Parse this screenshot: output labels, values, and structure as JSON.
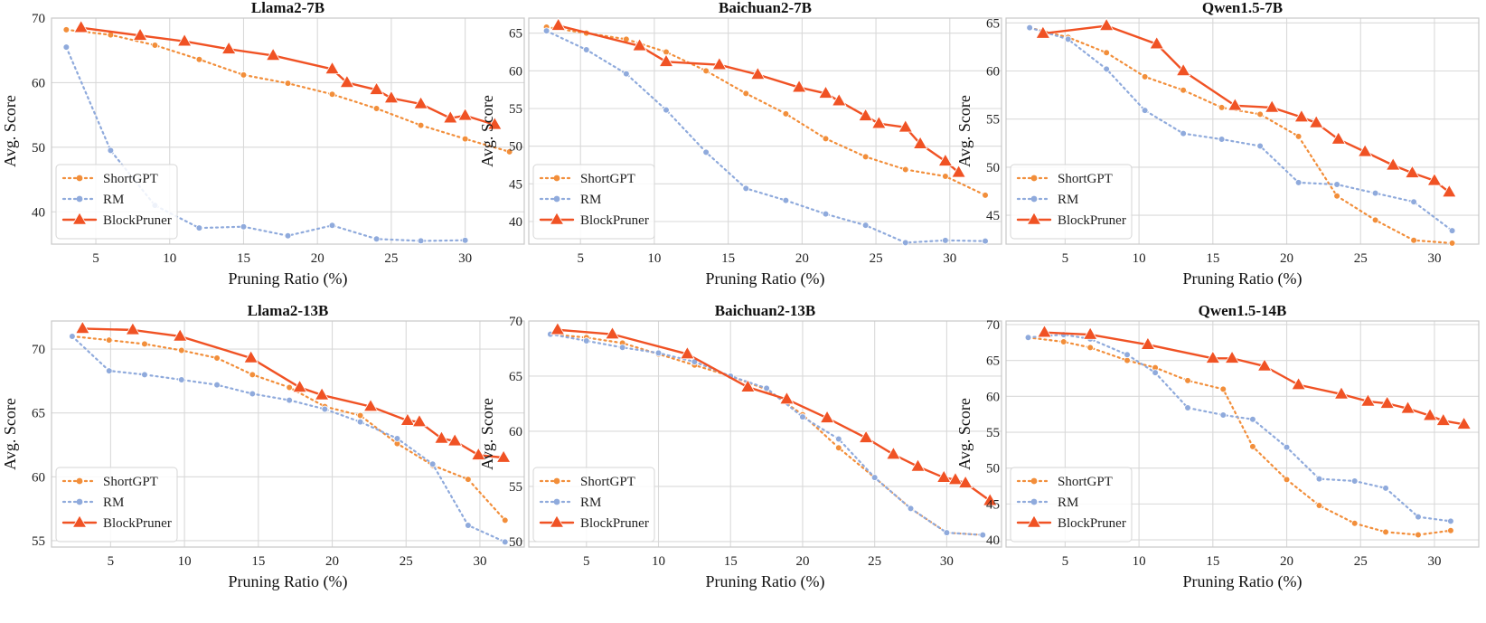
{
  "chart_data": [
    {
      "type": "line",
      "title": "Llama2-7B",
      "xlabel": "Pruning Ratio (%)",
      "ylabel": "Avg. Score",
      "xlim": [
        2,
        34
      ],
      "ylim": [
        35,
        70
      ],
      "xticks": [
        5,
        10,
        15,
        20,
        25,
        30
      ],
      "yticks": [
        40,
        50,
        60,
        70
      ],
      "legend": "lower-left",
      "series": [
        {
          "name": "ShortGPT",
          "x": [
            3,
            6,
            9,
            12,
            15,
            18,
            21,
            24,
            27,
            30,
            33
          ],
          "y": [
            68.2,
            67.4,
            65.8,
            63.6,
            61.2,
            59.9,
            58.2,
            56.0,
            53.4,
            51.3,
            49.3
          ]
        },
        {
          "name": "RM",
          "x": [
            3,
            6,
            9,
            12,
            15,
            18,
            21,
            24,
            27,
            30
          ],
          "y": [
            65.5,
            49.5,
            41.0,
            37.5,
            37.7,
            36.3,
            37.9,
            35.8,
            35.5,
            35.6
          ]
        },
        {
          "name": "BlockPruner",
          "x": [
            4,
            8,
            11,
            14,
            17,
            21,
            22,
            24,
            25,
            27,
            29,
            30,
            32
          ],
          "y": [
            68.5,
            67.3,
            66.4,
            65.2,
            64.2,
            62.1,
            60.0,
            58.9,
            57.6,
            56.7,
            54.5,
            54.9,
            53.5
          ]
        }
      ]
    },
    {
      "type": "line",
      "title": "Baichuan2-7B",
      "xlabel": "Pruning Ratio (%)",
      "ylabel": "Avg. Score",
      "xlim": [
        1.5,
        33.5
      ],
      "ylim": [
        37,
        67
      ],
      "xticks": [
        5,
        10,
        15,
        20,
        25,
        30
      ],
      "yticks": [
        40,
        45,
        50,
        55,
        60,
        65
      ],
      "legend": "lower-left",
      "series": [
        {
          "name": "ShortGPT",
          "x": [
            2.7,
            5.4,
            8.1,
            10.8,
            13.5,
            16.2,
            18.9,
            21.6,
            24.3,
            27,
            29.7,
            32.4
          ],
          "y": [
            65.8,
            65.0,
            64.2,
            62.5,
            60.0,
            57.0,
            54.3,
            51.0,
            48.6,
            46.9,
            46.0,
            43.5
          ]
        },
        {
          "name": "RM",
          "x": [
            2.7,
            5.4,
            8.1,
            10.8,
            13.5,
            16.2,
            18.9,
            21.6,
            24.3,
            27,
            29.7,
            32.4
          ],
          "y": [
            65.3,
            62.8,
            59.6,
            54.8,
            49.2,
            44.4,
            42.8,
            41.0,
            39.5,
            37.2,
            37.5,
            37.4
          ]
        },
        {
          "name": "BlockPruner",
          "x": [
            3.5,
            9,
            10.8,
            14.4,
            17,
            19.8,
            21.6,
            22.5,
            24.3,
            25.2,
            27,
            28,
            29.7,
            30.6
          ],
          "y": [
            66.0,
            63.3,
            61.2,
            60.8,
            59.5,
            57.8,
            57.0,
            56.0,
            54.0,
            53.0,
            52.5,
            50.3,
            48.0,
            46.5
          ]
        }
      ]
    },
    {
      "type": "line",
      "title": "Qwen1.5-7B",
      "xlabel": "Pruning Ratio (%)",
      "ylabel": "Avg. Score",
      "xlim": [
        1,
        33
      ],
      "ylim": [
        42,
        65.5
      ],
      "xticks": [
        5,
        10,
        15,
        20,
        25,
        30
      ],
      "yticks": [
        45,
        50,
        55,
        60,
        65
      ],
      "legend": "lower-left",
      "series": [
        {
          "name": "ShortGPT",
          "x": [
            2.6,
            5.2,
            7.8,
            10.4,
            13,
            15.6,
            18.2,
            20.8,
            23.4,
            26,
            28.6,
            31.2
          ],
          "y": [
            64.5,
            63.5,
            61.9,
            59.4,
            58.0,
            56.2,
            55.5,
            53.2,
            47.0,
            44.5,
            42.4,
            42.1
          ]
        },
        {
          "name": "RM",
          "x": [
            2.6,
            5.2,
            7.8,
            10.4,
            13,
            15.6,
            18.2,
            20.8,
            23.4,
            26,
            28.6,
            31.2
          ],
          "y": [
            64.5,
            63.3,
            60.2,
            55.9,
            53.5,
            52.9,
            52.2,
            48.4,
            48.2,
            47.3,
            46.4,
            43.4
          ]
        },
        {
          "name": "BlockPruner",
          "x": [
            3.5,
            7.8,
            11.2,
            13,
            16.5,
            19,
            21,
            22,
            23.5,
            25.3,
            27.2,
            28.5,
            30,
            31
          ],
          "y": [
            63.9,
            64.7,
            62.8,
            60.0,
            56.4,
            56.2,
            55.2,
            54.6,
            52.9,
            51.6,
            50.2,
            49.4,
            48.6,
            47.4
          ]
        }
      ]
    },
    {
      "type": "line",
      "title": "Llama2-13B",
      "xlabel": "Pruning Ratio (%)",
      "ylabel": "Avg. Score",
      "xlim": [
        1,
        33
      ],
      "ylim": [
        54.5,
        72.2
      ],
      "xticks": [
        5,
        10,
        15,
        20,
        25,
        30
      ],
      "yticks": [
        55,
        60,
        65,
        70
      ],
      "legend": "lower-left",
      "series": [
        {
          "name": "ShortGPT",
          "x": [
            2.4,
            4.9,
            7.3,
            9.8,
            12.2,
            14.6,
            17.1,
            19.5,
            21.9,
            24.4,
            26.8,
            29.2,
            31.7
          ],
          "y": [
            71.0,
            70.7,
            70.4,
            69.9,
            69.3,
            68.0,
            67.0,
            65.5,
            64.8,
            62.6,
            60.9,
            59.8,
            56.6
          ]
        },
        {
          "name": "RM",
          "x": [
            2.4,
            4.9,
            7.3,
            9.8,
            12.2,
            14.6,
            17.1,
            19.5,
            21.9,
            24.4,
            26.8,
            29.2,
            31.7
          ],
          "y": [
            71.0,
            68.3,
            68.0,
            67.6,
            67.2,
            66.5,
            66.0,
            65.3,
            64.3,
            63.0,
            61.0,
            56.2,
            54.9
          ]
        },
        {
          "name": "BlockPruner",
          "x": [
            3.1,
            6.5,
            9.7,
            14.5,
            17.8,
            19.3,
            22.6,
            25.1,
            25.9,
            27.4,
            28.3,
            29.9,
            31.6
          ],
          "y": [
            71.6,
            71.5,
            71.0,
            69.3,
            67.0,
            66.4,
            65.5,
            64.4,
            64.3,
            63.0,
            62.8,
            61.7,
            61.5
          ]
        }
      ]
    },
    {
      "type": "line",
      "title": "Baichuan2-13B",
      "xlabel": "Pruning Ratio (%)",
      "ylabel": "Avg. Score",
      "xlim": [
        1,
        33.8
      ],
      "ylim": [
        49.5,
        70
      ],
      "xticks": [
        5,
        10,
        15,
        20,
        25,
        30
      ],
      "yticks": [
        50,
        55,
        60,
        65,
        70
      ],
      "legend": "lower-left",
      "series": [
        {
          "name": "ShortGPT",
          "x": [
            2.5,
            5,
            7.5,
            10,
            12.5,
            15,
            17.5,
            20,
            22.5,
            25,
            27.5,
            30,
            32.5
          ],
          "y": [
            68.8,
            68.5,
            68.0,
            67.0,
            66.0,
            65.0,
            63.8,
            61.5,
            58.5,
            55.8,
            53.0,
            50.8,
            50.6
          ]
        },
        {
          "name": "RM",
          "x": [
            2.5,
            5,
            7.5,
            10,
            12.5,
            15,
            17.5,
            20,
            22.5,
            25,
            27.5,
            30,
            32.5
          ],
          "y": [
            68.8,
            68.2,
            67.6,
            67.1,
            66.3,
            65.0,
            63.9,
            61.3,
            59.3,
            55.8,
            53.0,
            50.8,
            50.6
          ]
        },
        {
          "name": "BlockPruner",
          "x": [
            3,
            6.8,
            12,
            16.2,
            18.9,
            21.7,
            24.4,
            26.3,
            28,
            29.8,
            30.6,
            31.3,
            33
          ],
          "y": [
            69.2,
            68.8,
            67.0,
            64.0,
            62.9,
            61.2,
            59.4,
            57.9,
            56.8,
            55.8,
            55.6,
            55.3,
            53.7
          ]
        }
      ]
    },
    {
      "type": "line",
      "title": "Qwen1.5-14B",
      "xlabel": "Pruning Ratio (%)",
      "ylabel": "Avg. Score",
      "xlim": [
        1,
        33
      ],
      "ylim": [
        39,
        70.5
      ],
      "xticks": [
        5,
        10,
        15,
        20,
        25,
        30
      ],
      "yticks": [
        40,
        45,
        50,
        55,
        60,
        65,
        70
      ],
      "legend": "lower-left",
      "series": [
        {
          "name": "ShortGPT",
          "x": [
            2.5,
            4.9,
            6.7,
            9.2,
            11.1,
            13.3,
            15.7,
            17.7,
            20,
            22.2,
            24.6,
            26.7,
            28.9,
            31.1
          ],
          "y": [
            68.2,
            67.6,
            66.8,
            65.0,
            64.0,
            62.2,
            61.0,
            53.0,
            48.4,
            44.8,
            42.3,
            41.1,
            40.7,
            41.3
          ]
        },
        {
          "name": "RM",
          "x": [
            2.5,
            4.9,
            6.7,
            9.2,
            11.1,
            13.3,
            15.7,
            17.7,
            20,
            22.2,
            24.6,
            26.7,
            28.9,
            31.1
          ],
          "y": [
            68.2,
            68.6,
            68.0,
            65.8,
            63.3,
            58.4,
            57.4,
            56.8,
            52.9,
            48.5,
            48.2,
            47.2,
            43.2,
            42.6
          ]
        },
        {
          "name": "BlockPruner",
          "x": [
            3.6,
            6.7,
            10.6,
            15,
            16.3,
            18.5,
            20.8,
            23.7,
            25.5,
            26.8,
            28.2,
            29.7,
            30.6,
            32
          ],
          "y": [
            68.9,
            68.6,
            67.2,
            65.3,
            65.3,
            64.2,
            61.6,
            60.3,
            59.3,
            59.0,
            58.3,
            57.3,
            56.6,
            56.1
          ]
        }
      ]
    }
  ],
  "colors": {
    "ShortGPT": "#f28e3a",
    "RM": "#8faadc",
    "BlockPruner": "#f05224",
    "grid": "#d9d9d9",
    "spine": "#c8c8c8"
  }
}
